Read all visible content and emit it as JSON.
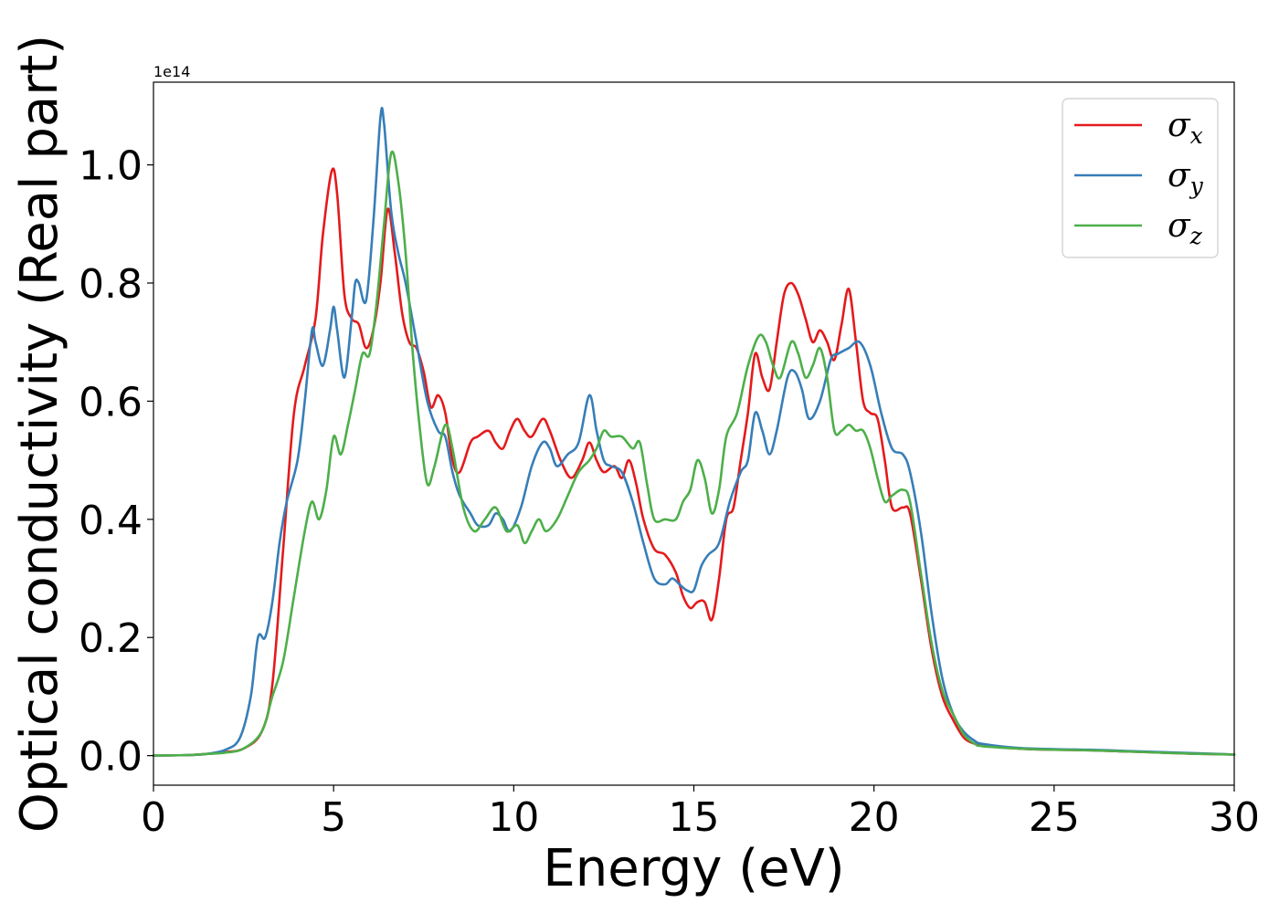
{
  "chart_data": {
    "type": "line",
    "xlabel": "Energy (eV)",
    "ylabel": "Optical conductivity (Real part)",
    "y_offset_label": "1e14",
    "y_scale": 100000000000000.0,
    "xlim": [
      0,
      30
    ],
    "ylim": [
      -0.05,
      1.14
    ],
    "x_ticks": [
      0,
      5,
      10,
      15,
      20,
      25,
      30
    ],
    "x_tick_labels": [
      "0",
      "5",
      "10",
      "15",
      "20",
      "25",
      "30"
    ],
    "y_ticks": [
      0.0,
      0.2,
      0.4,
      0.6,
      0.8,
      1.0
    ],
    "y_tick_labels": [
      "0.0",
      "0.2",
      "0.4",
      "0.6",
      "0.8",
      "1.0"
    ],
    "grid": false,
    "legend_position": "top-right",
    "series": [
      {
        "name": "σx",
        "base": "σ",
        "sub": "x",
        "color": "#e41a1c",
        "points": [
          [
            0,
            0
          ],
          [
            1,
            0.001
          ],
          [
            1.5,
            0.003
          ],
          [
            2,
            0.006
          ],
          [
            2.5,
            0.012
          ],
          [
            3,
            0.04
          ],
          [
            3.3,
            0.12
          ],
          [
            3.6,
            0.35
          ],
          [
            3.9,
            0.58
          ],
          [
            4.2,
            0.66
          ],
          [
            4.5,
            0.74
          ],
          [
            4.7,
            0.88
          ],
          [
            4.95,
            0.99
          ],
          [
            5.1,
            0.95
          ],
          [
            5.3,
            0.78
          ],
          [
            5.5,
            0.74
          ],
          [
            5.7,
            0.73
          ],
          [
            5.9,
            0.69
          ],
          [
            6.1,
            0.72
          ],
          [
            6.3,
            0.8
          ],
          [
            6.5,
            0.925
          ],
          [
            6.7,
            0.85
          ],
          [
            6.9,
            0.75
          ],
          [
            7.1,
            0.7
          ],
          [
            7.3,
            0.69
          ],
          [
            7.5,
            0.65
          ],
          [
            7.7,
            0.59
          ],
          [
            7.9,
            0.61
          ],
          [
            8.1,
            0.58
          ],
          [
            8.3,
            0.5
          ],
          [
            8.5,
            0.48
          ],
          [
            8.8,
            0.53
          ],
          [
            9,
            0.54
          ],
          [
            9.3,
            0.55
          ],
          [
            9.5,
            0.53
          ],
          [
            9.7,
            0.52
          ],
          [
            9.9,
            0.55
          ],
          [
            10.1,
            0.57
          ],
          [
            10.3,
            0.55
          ],
          [
            10.5,
            0.54
          ],
          [
            10.8,
            0.57
          ],
          [
            11,
            0.55
          ],
          [
            11.3,
            0.5
          ],
          [
            11.6,
            0.47
          ],
          [
            11.9,
            0.5
          ],
          [
            12.1,
            0.53
          ],
          [
            12.3,
            0.5
          ],
          [
            12.5,
            0.48
          ],
          [
            12.8,
            0.49
          ],
          [
            13,
            0.47
          ],
          [
            13.2,
            0.5
          ],
          [
            13.4,
            0.46
          ],
          [
            13.6,
            0.4
          ],
          [
            13.9,
            0.35
          ],
          [
            14.2,
            0.34
          ],
          [
            14.5,
            0.31
          ],
          [
            14.7,
            0.27
          ],
          [
            14.9,
            0.25
          ],
          [
            15.1,
            0.26
          ],
          [
            15.3,
            0.26
          ],
          [
            15.5,
            0.23
          ],
          [
            15.7,
            0.3
          ],
          [
            15.9,
            0.4
          ],
          [
            16.1,
            0.42
          ],
          [
            16.3,
            0.5
          ],
          [
            16.5,
            0.58
          ],
          [
            16.7,
            0.68
          ],
          [
            16.9,
            0.64
          ],
          [
            17.1,
            0.62
          ],
          [
            17.3,
            0.7
          ],
          [
            17.5,
            0.78
          ],
          [
            17.7,
            0.8
          ],
          [
            17.9,
            0.78
          ],
          [
            18.1,
            0.74
          ],
          [
            18.3,
            0.7
          ],
          [
            18.5,
            0.72
          ],
          [
            18.7,
            0.7
          ],
          [
            18.9,
            0.67
          ],
          [
            19.1,
            0.73
          ],
          [
            19.3,
            0.79
          ],
          [
            19.5,
            0.7
          ],
          [
            19.7,
            0.6
          ],
          [
            19.9,
            0.58
          ],
          [
            20.1,
            0.57
          ],
          [
            20.3,
            0.5
          ],
          [
            20.5,
            0.42
          ],
          [
            20.8,
            0.42
          ],
          [
            21,
            0.41
          ],
          [
            21.3,
            0.3
          ],
          [
            21.6,
            0.18
          ],
          [
            21.9,
            0.1
          ],
          [
            22.2,
            0.06
          ],
          [
            22.5,
            0.03
          ],
          [
            22.8,
            0.02
          ],
          [
            23,
            0.018
          ],
          [
            24,
            0.012
          ],
          [
            25,
            0.01
          ],
          [
            26,
            0.009
          ],
          [
            27,
            0.007
          ],
          [
            28,
            0.005
          ],
          [
            29,
            0.003
          ],
          [
            30,
            0.002
          ]
        ]
      },
      {
        "name": "σy",
        "base": "σ",
        "sub": "y",
        "color": "#377eb8",
        "points": [
          [
            0,
            0
          ],
          [
            1,
            0.001
          ],
          [
            1.5,
            0.003
          ],
          [
            2,
            0.01
          ],
          [
            2.4,
            0.03
          ],
          [
            2.7,
            0.1
          ],
          [
            2.9,
            0.2
          ],
          [
            3.1,
            0.2
          ],
          [
            3.3,
            0.26
          ],
          [
            3.5,
            0.36
          ],
          [
            3.7,
            0.43
          ],
          [
            4,
            0.5
          ],
          [
            4.2,
            0.6
          ],
          [
            4.4,
            0.72
          ],
          [
            4.5,
            0.7
          ],
          [
            4.7,
            0.66
          ],
          [
            4.9,
            0.72
          ],
          [
            5,
            0.76
          ],
          [
            5.1,
            0.72
          ],
          [
            5.3,
            0.64
          ],
          [
            5.5,
            0.74
          ],
          [
            5.6,
            0.8
          ],
          [
            5.7,
            0.8
          ],
          [
            5.9,
            0.77
          ],
          [
            6.1,
            0.9
          ],
          [
            6.3,
            1.08
          ],
          [
            6.4,
            1.07
          ],
          [
            6.6,
            0.92
          ],
          [
            6.8,
            0.85
          ],
          [
            7,
            0.8
          ],
          [
            7.3,
            0.7
          ],
          [
            7.6,
            0.6
          ],
          [
            7.9,
            0.55
          ],
          [
            8.1,
            0.54
          ],
          [
            8.3,
            0.48
          ],
          [
            8.5,
            0.44
          ],
          [
            8.8,
            0.41
          ],
          [
            9,
            0.39
          ],
          [
            9.3,
            0.39
          ],
          [
            9.5,
            0.41
          ],
          [
            9.7,
            0.4
          ],
          [
            9.9,
            0.38
          ],
          [
            10.2,
            0.42
          ],
          [
            10.5,
            0.49
          ],
          [
            10.8,
            0.53
          ],
          [
            11,
            0.52
          ],
          [
            11.2,
            0.49
          ],
          [
            11.5,
            0.51
          ],
          [
            11.8,
            0.53
          ],
          [
            12.1,
            0.61
          ],
          [
            12.3,
            0.55
          ],
          [
            12.5,
            0.5
          ],
          [
            12.7,
            0.49
          ],
          [
            13,
            0.48
          ],
          [
            13.3,
            0.43
          ],
          [
            13.6,
            0.36
          ],
          [
            13.9,
            0.3
          ],
          [
            14.2,
            0.29
          ],
          [
            14.4,
            0.3
          ],
          [
            14.6,
            0.29
          ],
          [
            14.8,
            0.28
          ],
          [
            15,
            0.28
          ],
          [
            15.2,
            0.32
          ],
          [
            15.4,
            0.34
          ],
          [
            15.7,
            0.36
          ],
          [
            16,
            0.43
          ],
          [
            16.3,
            0.48
          ],
          [
            16.5,
            0.5
          ],
          [
            16.7,
            0.58
          ],
          [
            16.9,
            0.55
          ],
          [
            17.1,
            0.51
          ],
          [
            17.3,
            0.55
          ],
          [
            17.6,
            0.64
          ],
          [
            17.8,
            0.65
          ],
          [
            18,
            0.62
          ],
          [
            18.2,
            0.57
          ],
          [
            18.5,
            0.6
          ],
          [
            18.8,
            0.67
          ],
          [
            19,
            0.68
          ],
          [
            19.3,
            0.69
          ],
          [
            19.6,
            0.7
          ],
          [
            19.9,
            0.66
          ],
          [
            20.2,
            0.58
          ],
          [
            20.5,
            0.52
          ],
          [
            20.8,
            0.51
          ],
          [
            21,
            0.48
          ],
          [
            21.3,
            0.38
          ],
          [
            21.6,
            0.24
          ],
          [
            21.9,
            0.13
          ],
          [
            22.2,
            0.07
          ],
          [
            22.5,
            0.04
          ],
          [
            22.8,
            0.025
          ],
          [
            23,
            0.02
          ],
          [
            24,
            0.013
          ],
          [
            25,
            0.011
          ],
          [
            26,
            0.01
          ],
          [
            27,
            0.008
          ],
          [
            28,
            0.006
          ],
          [
            29,
            0.004
          ],
          [
            30,
            0.002
          ]
        ]
      },
      {
        "name": "σz",
        "base": "σ",
        "sub": "z",
        "color": "#4daf4a",
        "points": [
          [
            0,
            0
          ],
          [
            1,
            0.001
          ],
          [
            1.5,
            0.003
          ],
          [
            2,
            0.005
          ],
          [
            2.5,
            0.012
          ],
          [
            3,
            0.04
          ],
          [
            3.3,
            0.1
          ],
          [
            3.6,
            0.16
          ],
          [
            3.9,
            0.27
          ],
          [
            4.2,
            0.38
          ],
          [
            4.4,
            0.43
          ],
          [
            4.6,
            0.4
          ],
          [
            4.8,
            0.45
          ],
          [
            5,
            0.54
          ],
          [
            5.2,
            0.51
          ],
          [
            5.4,
            0.56
          ],
          [
            5.6,
            0.62
          ],
          [
            5.8,
            0.68
          ],
          [
            6,
            0.68
          ],
          [
            6.2,
            0.77
          ],
          [
            6.4,
            0.9
          ],
          [
            6.6,
            1.02
          ],
          [
            6.8,
            0.97
          ],
          [
            7,
            0.85
          ],
          [
            7.2,
            0.68
          ],
          [
            7.4,
            0.55
          ],
          [
            7.6,
            0.46
          ],
          [
            7.8,
            0.49
          ],
          [
            8.1,
            0.56
          ],
          [
            8.3,
            0.52
          ],
          [
            8.6,
            0.42
          ],
          [
            8.9,
            0.38
          ],
          [
            9.2,
            0.4
          ],
          [
            9.5,
            0.42
          ],
          [
            9.8,
            0.38
          ],
          [
            10.1,
            0.39
          ],
          [
            10.3,
            0.36
          ],
          [
            10.5,
            0.38
          ],
          [
            10.7,
            0.4
          ],
          [
            10.9,
            0.38
          ],
          [
            11.2,
            0.4
          ],
          [
            11.5,
            0.44
          ],
          [
            11.8,
            0.48
          ],
          [
            12.1,
            0.5
          ],
          [
            12.3,
            0.52
          ],
          [
            12.5,
            0.55
          ],
          [
            12.7,
            0.54
          ],
          [
            13,
            0.54
          ],
          [
            13.3,
            0.52
          ],
          [
            13.5,
            0.53
          ],
          [
            13.7,
            0.46
          ],
          [
            13.9,
            0.4
          ],
          [
            14.2,
            0.4
          ],
          [
            14.5,
            0.4
          ],
          [
            14.7,
            0.43
          ],
          [
            14.9,
            0.45
          ],
          [
            15.1,
            0.5
          ],
          [
            15.3,
            0.47
          ],
          [
            15.5,
            0.41
          ],
          [
            15.7,
            0.45
          ],
          [
            15.9,
            0.54
          ],
          [
            16.2,
            0.58
          ],
          [
            16.5,
            0.66
          ],
          [
            16.8,
            0.71
          ],
          [
            17,
            0.7
          ],
          [
            17.2,
            0.66
          ],
          [
            17.4,
            0.64
          ],
          [
            17.7,
            0.7
          ],
          [
            17.9,
            0.68
          ],
          [
            18.1,
            0.64
          ],
          [
            18.3,
            0.66
          ],
          [
            18.5,
            0.69
          ],
          [
            18.7,
            0.64
          ],
          [
            18.9,
            0.55
          ],
          [
            19.1,
            0.55
          ],
          [
            19.3,
            0.56
          ],
          [
            19.5,
            0.55
          ],
          [
            19.7,
            0.55
          ],
          [
            19.9,
            0.52
          ],
          [
            20.1,
            0.47
          ],
          [
            20.3,
            0.43
          ],
          [
            20.5,
            0.44
          ],
          [
            20.8,
            0.45
          ],
          [
            21,
            0.43
          ],
          [
            21.3,
            0.31
          ],
          [
            21.6,
            0.19
          ],
          [
            21.9,
            0.11
          ],
          [
            22.2,
            0.07
          ],
          [
            22.5,
            0.035
          ],
          [
            22.8,
            0.02
          ],
          [
            23,
            0.016
          ],
          [
            24,
            0.012
          ],
          [
            25,
            0.01
          ],
          [
            26,
            0.009
          ],
          [
            27,
            0.007
          ],
          [
            28,
            0.005
          ],
          [
            29,
            0.003
          ],
          [
            30,
            0.002
          ]
        ]
      }
    ]
  }
}
